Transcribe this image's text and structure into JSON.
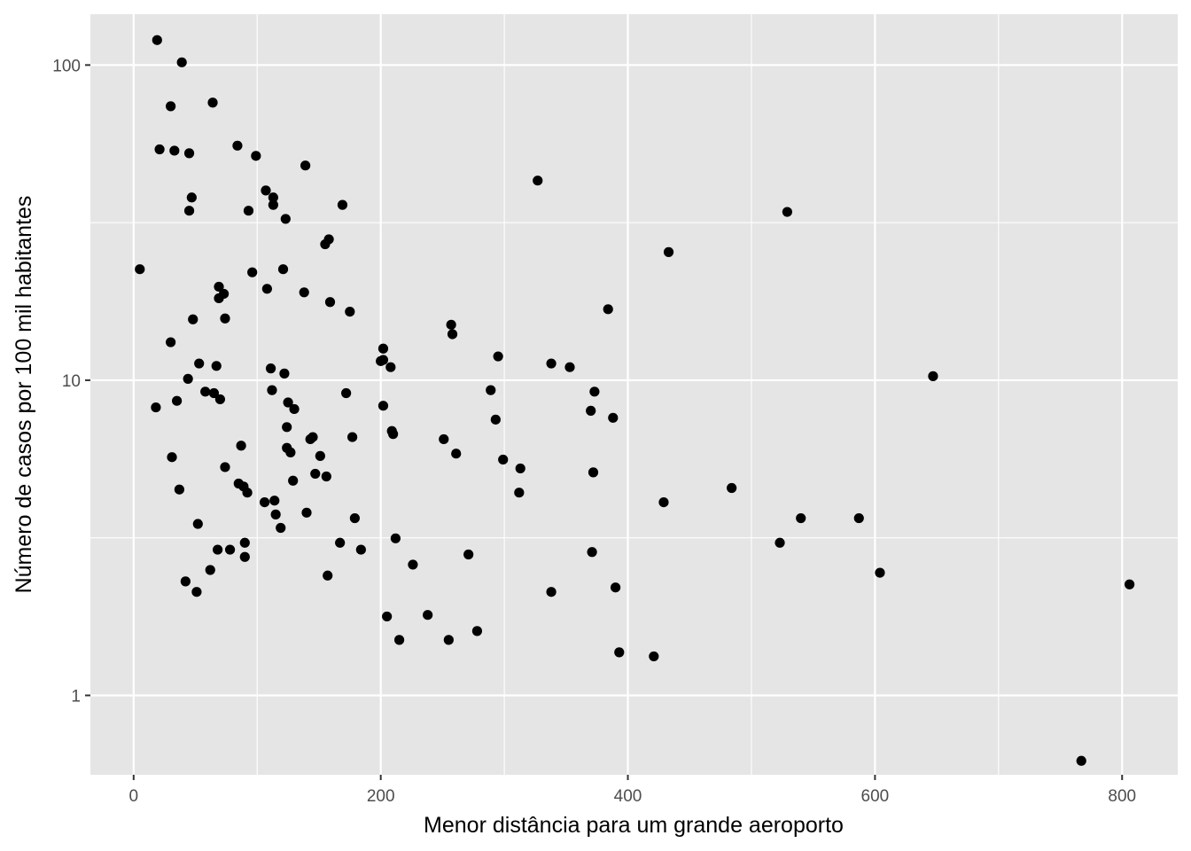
{
  "chart_data": {
    "type": "scatter",
    "title": "",
    "xlabel": "Menor distância para um grande aeroporto",
    "ylabel": "Número de casos por 100 mil habitantes",
    "x_scale": "linear",
    "y_scale": "log10",
    "xlim": [
      -35,
      845
    ],
    "ylim": [
      0.56,
      145
    ],
    "x_ticks": [
      0,
      200,
      400,
      600,
      800
    ],
    "x_tick_labels": [
      "0",
      "200",
      "400",
      "600",
      "800"
    ],
    "y_ticks": [
      1,
      10,
      100
    ],
    "y_tick_labels": [
      "1",
      "10",
      "100"
    ],
    "grid": true,
    "legend": "none",
    "colors": {
      "panel": "#e5e5e5",
      "grid": "#ffffff",
      "point": "#000000"
    },
    "points": [
      {
        "x": 5,
        "y": 22.5
      },
      {
        "x": 18,
        "y": 8.2
      },
      {
        "x": 19,
        "y": 120
      },
      {
        "x": 21,
        "y": 54
      },
      {
        "x": 30,
        "y": 13.2
      },
      {
        "x": 30,
        "y": 74
      },
      {
        "x": 31,
        "y": 5.7
      },
      {
        "x": 33,
        "y": 53.5
      },
      {
        "x": 35,
        "y": 8.6
      },
      {
        "x": 37,
        "y": 4.5
      },
      {
        "x": 39,
        "y": 102
      },
      {
        "x": 42,
        "y": 2.3
      },
      {
        "x": 44,
        "y": 10.1
      },
      {
        "x": 45,
        "y": 52.5
      },
      {
        "x": 45,
        "y": 34.5
      },
      {
        "x": 47,
        "y": 38
      },
      {
        "x": 48,
        "y": 15.6
      },
      {
        "x": 51,
        "y": 2.13
      },
      {
        "x": 52,
        "y": 3.5
      },
      {
        "x": 53,
        "y": 11.3
      },
      {
        "x": 58,
        "y": 9.2
      },
      {
        "x": 62,
        "y": 2.5
      },
      {
        "x": 64,
        "y": 76
      },
      {
        "x": 65,
        "y": 9.1
      },
      {
        "x": 67,
        "y": 11.1
      },
      {
        "x": 68,
        "y": 2.9
      },
      {
        "x": 69,
        "y": 19.8
      },
      {
        "x": 69,
        "y": 18.2
      },
      {
        "x": 70,
        "y": 8.7
      },
      {
        "x": 73,
        "y": 18.8
      },
      {
        "x": 74,
        "y": 5.3
      },
      {
        "x": 74,
        "y": 15.7
      },
      {
        "x": 78,
        "y": 2.9
      },
      {
        "x": 84,
        "y": 55.5
      },
      {
        "x": 85,
        "y": 4.7
      },
      {
        "x": 87,
        "y": 6.2
      },
      {
        "x": 89,
        "y": 4.6
      },
      {
        "x": 90,
        "y": 3.05
      },
      {
        "x": 90,
        "y": 2.75
      },
      {
        "x": 92,
        "y": 4.4
      },
      {
        "x": 93,
        "y": 34.5
      },
      {
        "x": 96,
        "y": 22
      },
      {
        "x": 99,
        "y": 51.5
      },
      {
        "x": 106,
        "y": 4.1
      },
      {
        "x": 107,
        "y": 40
      },
      {
        "x": 108,
        "y": 19.5
      },
      {
        "x": 111,
        "y": 10.9
      },
      {
        "x": 112,
        "y": 9.3
      },
      {
        "x": 113,
        "y": 38
      },
      {
        "x": 113,
        "y": 36
      },
      {
        "x": 114,
        "y": 4.15
      },
      {
        "x": 115,
        "y": 3.75
      },
      {
        "x": 119,
        "y": 3.4
      },
      {
        "x": 121,
        "y": 22.5
      },
      {
        "x": 122,
        "y": 10.5
      },
      {
        "x": 123,
        "y": 32.5
      },
      {
        "x": 124,
        "y": 6.1
      },
      {
        "x": 124,
        "y": 7.1
      },
      {
        "x": 125,
        "y": 8.5
      },
      {
        "x": 127,
        "y": 5.9
      },
      {
        "x": 129,
        "y": 4.8
      },
      {
        "x": 130,
        "y": 8.1
      },
      {
        "x": 138,
        "y": 19
      },
      {
        "x": 139,
        "y": 48
      },
      {
        "x": 140,
        "y": 3.8
      },
      {
        "x": 143,
        "y": 6.5
      },
      {
        "x": 145,
        "y": 6.6
      },
      {
        "x": 147,
        "y": 5.05
      },
      {
        "x": 151,
        "y": 5.75
      },
      {
        "x": 155,
        "y": 27
      },
      {
        "x": 156,
        "y": 4.95
      },
      {
        "x": 157,
        "y": 2.4
      },
      {
        "x": 158,
        "y": 28
      },
      {
        "x": 159,
        "y": 17.7
      },
      {
        "x": 167,
        "y": 3.05
      },
      {
        "x": 169,
        "y": 36
      },
      {
        "x": 172,
        "y": 9.1
      },
      {
        "x": 175,
        "y": 16.5
      },
      {
        "x": 177,
        "y": 6.6
      },
      {
        "x": 179,
        "y": 3.65
      },
      {
        "x": 184,
        "y": 2.9
      },
      {
        "x": 200,
        "y": 11.5
      },
      {
        "x": 202,
        "y": 11.6
      },
      {
        "x": 202,
        "y": 12.6
      },
      {
        "x": 202,
        "y": 8.3
      },
      {
        "x": 205,
        "y": 1.78
      },
      {
        "x": 208,
        "y": 11
      },
      {
        "x": 209,
        "y": 6.9
      },
      {
        "x": 210,
        "y": 6.75
      },
      {
        "x": 212,
        "y": 3.15
      },
      {
        "x": 215,
        "y": 1.5
      },
      {
        "x": 226,
        "y": 2.6
      },
      {
        "x": 238,
        "y": 1.8
      },
      {
        "x": 251,
        "y": 6.5
      },
      {
        "x": 255,
        "y": 1.5
      },
      {
        "x": 257,
        "y": 15
      },
      {
        "x": 258,
        "y": 14
      },
      {
        "x": 261,
        "y": 5.85
      },
      {
        "x": 271,
        "y": 2.8
      },
      {
        "x": 278,
        "y": 1.6
      },
      {
        "x": 289,
        "y": 9.3
      },
      {
        "x": 293,
        "y": 7.5
      },
      {
        "x": 295,
        "y": 11.9
      },
      {
        "x": 299,
        "y": 5.6
      },
      {
        "x": 312,
        "y": 4.4
      },
      {
        "x": 313,
        "y": 5.25
      },
      {
        "x": 327,
        "y": 43
      },
      {
        "x": 338,
        "y": 11.3
      },
      {
        "x": 338,
        "y": 2.13
      },
      {
        "x": 353,
        "y": 11
      },
      {
        "x": 370,
        "y": 8
      },
      {
        "x": 371,
        "y": 2.85
      },
      {
        "x": 372,
        "y": 5.1
      },
      {
        "x": 373,
        "y": 9.2
      },
      {
        "x": 384,
        "y": 16.8
      },
      {
        "x": 388,
        "y": 7.6
      },
      {
        "x": 390,
        "y": 2.2
      },
      {
        "x": 393,
        "y": 1.37
      },
      {
        "x": 421,
        "y": 1.33
      },
      {
        "x": 429,
        "y": 4.1
      },
      {
        "x": 433,
        "y": 25.5
      },
      {
        "x": 484,
        "y": 4.55
      },
      {
        "x": 523,
        "y": 3.05
      },
      {
        "x": 529,
        "y": 34.2
      },
      {
        "x": 540,
        "y": 3.65
      },
      {
        "x": 587,
        "y": 3.65
      },
      {
        "x": 604,
        "y": 2.45
      },
      {
        "x": 647,
        "y": 10.3
      },
      {
        "x": 767,
        "y": 0.62
      },
      {
        "x": 806,
        "y": 2.25
      }
    ]
  }
}
